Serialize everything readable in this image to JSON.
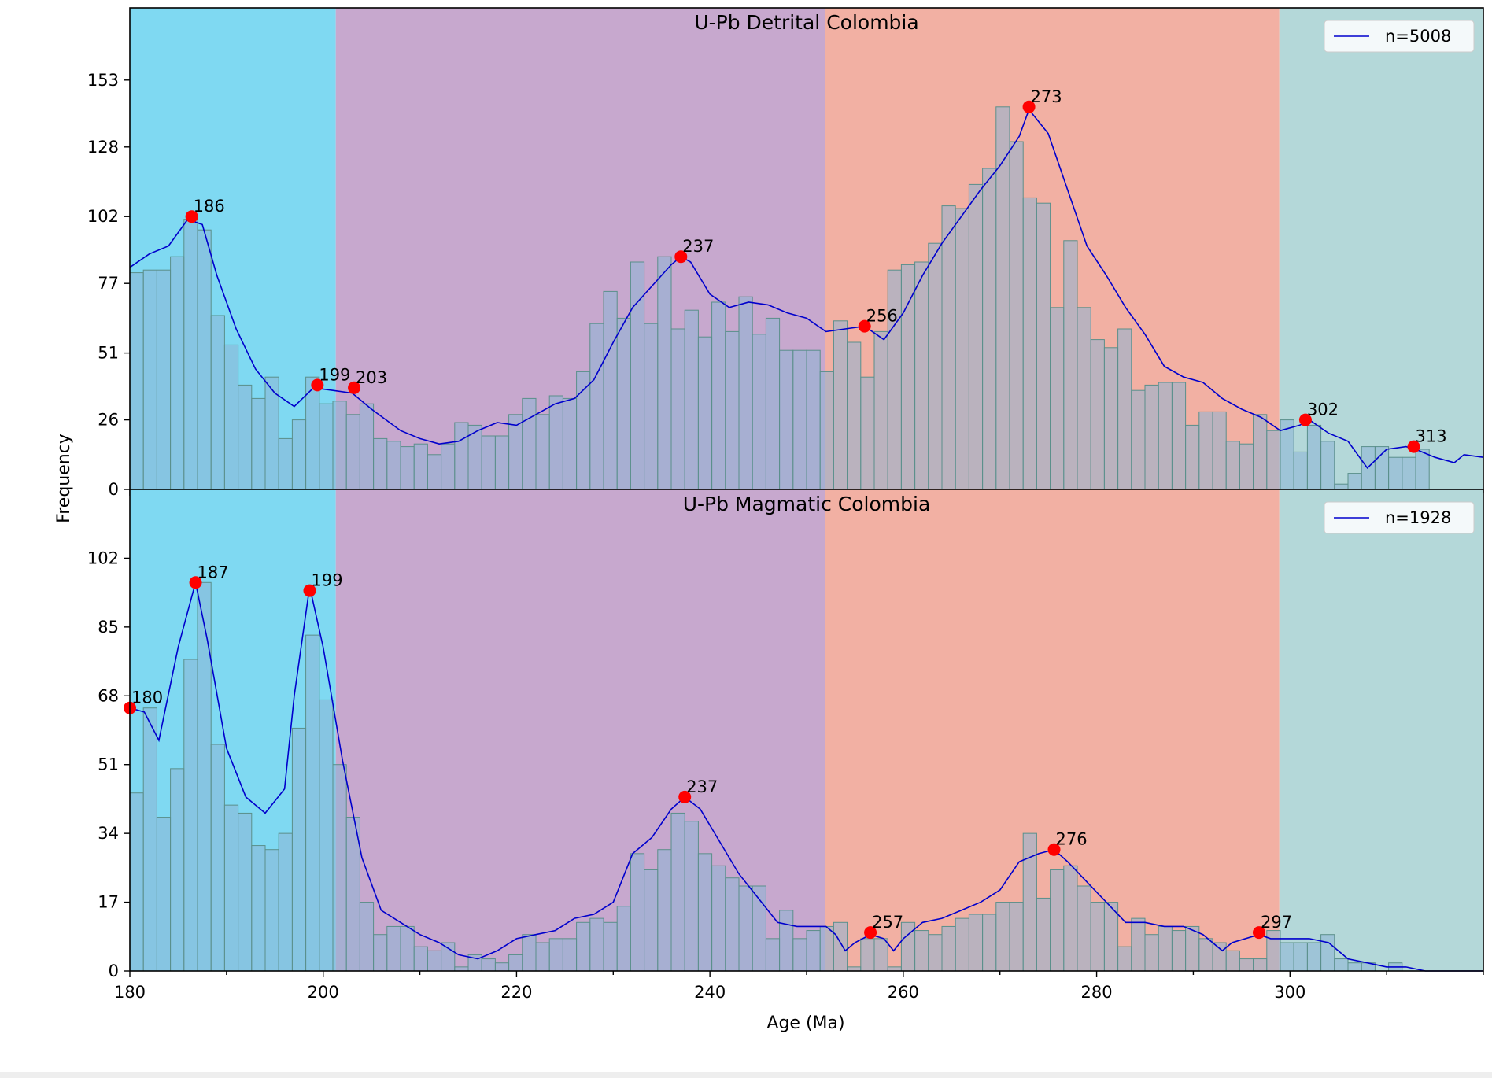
{
  "figure": {
    "ylabel": "Frequency",
    "xlabel": "Age (Ma)",
    "bottom_bar_color": "#eeeeee"
  },
  "chart_data": [
    {
      "type": "bar",
      "title": "U-Pb Detrital Colombia",
      "legend": {
        "label": "n=5008",
        "placement": "top-right"
      },
      "xlim": [
        180,
        320
      ],
      "ylim": [
        0,
        180
      ],
      "x_ticks": [
        180,
        200,
        220,
        240,
        260,
        280,
        300
      ],
      "y_ticks": [
        0,
        26,
        51,
        77,
        102,
        128,
        153
      ],
      "bin_start": 180,
      "bin_width": 1.4,
      "values": [
        81,
        82,
        82,
        87,
        101,
        97,
        65,
        54,
        39,
        34,
        42,
        19,
        26,
        42,
        32,
        33,
        28,
        32,
        19,
        18,
        16,
        17,
        13,
        17,
        25,
        24,
        20,
        20,
        28,
        34,
        28,
        35,
        34,
        44,
        62,
        74,
        64,
        85,
        62,
        87,
        60,
        67,
        57,
        70,
        59,
        72,
        58,
        64,
        52,
        52,
        52,
        44,
        63,
        55,
        42,
        59,
        82,
        84,
        85,
        92,
        106,
        105,
        114,
        120,
        143,
        130,
        109,
        107,
        68,
        93,
        68,
        56,
        53,
        60,
        37,
        39,
        40,
        40,
        24,
        29,
        29,
        18,
        17,
        28,
        22,
        26,
        14,
        24,
        18,
        2,
        6,
        16,
        16,
        12,
        12,
        15
      ],
      "kde": [
        [
          180,
          83
        ],
        [
          182,
          88
        ],
        [
          184,
          91
        ],
        [
          186,
          101
        ],
        [
          187.5,
          99
        ],
        [
          189,
          80
        ],
        [
          191,
          60
        ],
        [
          193,
          45
        ],
        [
          195,
          36
        ],
        [
          197,
          31
        ],
        [
          199,
          38
        ],
        [
          201,
          37
        ],
        [
          203,
          36
        ],
        [
          205,
          30
        ],
        [
          208,
          22
        ],
        [
          210,
          19
        ],
        [
          212,
          17
        ],
        [
          214,
          18
        ],
        [
          216,
          22
        ],
        [
          218,
          25
        ],
        [
          220,
          24
        ],
        [
          222,
          28
        ],
        [
          224,
          32
        ],
        [
          226,
          34
        ],
        [
          228,
          41
        ],
        [
          230,
          55
        ],
        [
          232,
          68
        ],
        [
          234,
          76
        ],
        [
          236,
          84
        ],
        [
          237,
          87
        ],
        [
          238,
          85
        ],
        [
          240,
          73
        ],
        [
          242,
          68
        ],
        [
          244,
          70
        ],
        [
          246,
          69
        ],
        [
          248,
          66
        ],
        [
          250,
          64
        ],
        [
          252,
          59
        ],
        [
          254,
          60
        ],
        [
          256,
          61
        ],
        [
          258,
          56
        ],
        [
          260,
          66
        ],
        [
          262,
          80
        ],
        [
          264,
          92
        ],
        [
          266,
          102
        ],
        [
          268,
          112
        ],
        [
          270,
          121
        ],
        [
          272,
          132
        ],
        [
          273,
          142
        ],
        [
          275,
          133
        ],
        [
          277,
          112
        ],
        [
          279,
          91
        ],
        [
          281,
          80
        ],
        [
          283,
          68
        ],
        [
          285,
          58
        ],
        [
          287,
          46
        ],
        [
          289,
          42
        ],
        [
          291,
          40
        ],
        [
          293,
          34
        ],
        [
          295,
          30
        ],
        [
          297,
          27
        ],
        [
          299,
          22
        ],
        [
          301,
          24
        ],
        [
          302,
          26
        ],
        [
          304,
          21
        ],
        [
          306,
          18
        ],
        [
          308,
          8
        ],
        [
          310,
          15
        ],
        [
          312,
          16
        ],
        [
          313,
          15
        ],
        [
          315,
          12
        ],
        [
          317,
          10
        ],
        [
          318,
          13
        ],
        [
          320,
          12
        ]
      ],
      "peaks": [
        {
          "x": 186.4,
          "y": 102,
          "label": "186"
        },
        {
          "x": 199.4,
          "y": 39,
          "label": "199"
        },
        {
          "x": 203.2,
          "y": 38,
          "label": "203"
        },
        {
          "x": 237,
          "y": 87,
          "label": "237"
        },
        {
          "x": 256,
          "y": 61,
          "label": "256"
        },
        {
          "x": 273,
          "y": 143,
          "label": "273"
        },
        {
          "x": 301.6,
          "y": 26,
          "label": "302"
        },
        {
          "x": 312.8,
          "y": 16,
          "label": "313"
        }
      ]
    },
    {
      "type": "bar",
      "title": "U-Pb Magmatic Colombia",
      "legend": {
        "label": "n=1928",
        "placement": "top-right"
      },
      "xlim": [
        180,
        320
      ],
      "ylim": [
        0,
        119
      ],
      "x_ticks": [
        180,
        200,
        220,
        240,
        260,
        280,
        300
      ],
      "y_ticks": [
        0,
        17,
        34,
        51,
        68,
        85,
        102
      ],
      "bin_start": 180,
      "bin_width": 1.4,
      "values": [
        44,
        65,
        38,
        50,
        77,
        96,
        56,
        41,
        39,
        31,
        30,
        34,
        60,
        83,
        67,
        51,
        38,
        17,
        9,
        11,
        11,
        6,
        5,
        7,
        1,
        4,
        3,
        2,
        4,
        9,
        7,
        8,
        8,
        12,
        13,
        12,
        16,
        29,
        25,
        30,
        39,
        37,
        29,
        26,
        23,
        21,
        21,
        8,
        15,
        8,
        10,
        11,
        12,
        1,
        8,
        8,
        1,
        12,
        10,
        9,
        11,
        13,
        14,
        14,
        17,
        17,
        34,
        18,
        25,
        26,
        21,
        17,
        17,
        6,
        13,
        9,
        11,
        10,
        11,
        8,
        7,
        5,
        3,
        3,
        10,
        7,
        7,
        7,
        9,
        3,
        2,
        2,
        0,
        2,
        0,
        0
      ],
      "kde": [
        [
          180,
          65
        ],
        [
          181.5,
          64
        ],
        [
          183,
          57
        ],
        [
          185,
          80
        ],
        [
          186.8,
          96
        ],
        [
          188,
          82
        ],
        [
          190,
          55
        ],
        [
          192,
          43
        ],
        [
          194,
          39
        ],
        [
          196,
          45
        ],
        [
          197,
          68
        ],
        [
          198.6,
          95
        ],
        [
          200,
          80
        ],
        [
          202,
          52
        ],
        [
          204,
          28
        ],
        [
          206,
          15
        ],
        [
          208,
          12
        ],
        [
          210,
          9
        ],
        [
          212,
          7
        ],
        [
          214,
          4
        ],
        [
          216,
          3
        ],
        [
          218,
          5
        ],
        [
          220,
          8
        ],
        [
          222,
          9
        ],
        [
          224,
          10
        ],
        [
          226,
          13
        ],
        [
          228,
          14
        ],
        [
          230,
          17
        ],
        [
          232,
          29
        ],
        [
          234,
          33
        ],
        [
          236,
          40
        ],
        [
          237.4,
          43
        ],
        [
          239,
          40
        ],
        [
          241,
          32
        ],
        [
          243,
          24
        ],
        [
          245,
          18
        ],
        [
          247,
          12
        ],
        [
          249,
          11
        ],
        [
          251,
          11
        ],
        [
          252,
          11
        ],
        [
          253,
          9
        ],
        [
          254,
          5
        ],
        [
          255,
          7
        ],
        [
          256.6,
          9
        ],
        [
          258,
          8
        ],
        [
          259,
          5
        ],
        [
          260,
          8
        ],
        [
          262,
          12
        ],
        [
          264,
          13
        ],
        [
          266,
          15
        ],
        [
          268,
          17
        ],
        [
          270,
          20
        ],
        [
          272,
          27
        ],
        [
          274,
          29
        ],
        [
          275.6,
          30
        ],
        [
          277,
          27
        ],
        [
          279,
          22
        ],
        [
          281,
          17
        ],
        [
          283,
          12
        ],
        [
          285,
          12
        ],
        [
          287,
          11
        ],
        [
          289,
          11
        ],
        [
          291,
          9
        ],
        [
          293,
          5
        ],
        [
          294,
          7
        ],
        [
          296.8,
          9
        ],
        [
          298,
          8
        ],
        [
          300,
          8
        ],
        [
          302,
          8
        ],
        [
          304,
          7
        ],
        [
          306,
          3
        ],
        [
          308,
          2
        ],
        [
          310,
          1
        ],
        [
          312,
          1
        ],
        [
          314,
          0
        ],
        [
          316,
          0
        ],
        [
          320,
          0
        ]
      ],
      "peaks": [
        {
          "x": 180,
          "y": 65,
          "label": "180"
        },
        {
          "x": 186.8,
          "y": 96,
          "label": "187"
        },
        {
          "x": 198.6,
          "y": 94,
          "label": "199"
        },
        {
          "x": 237.4,
          "y": 43,
          "label": "237"
        },
        {
          "x": 256.6,
          "y": 9.5,
          "label": "257"
        },
        {
          "x": 275.6,
          "y": 30,
          "label": "276"
        },
        {
          "x": 296.8,
          "y": 9.5,
          "label": "297"
        }
      ]
    }
  ],
  "background_bands": [
    {
      "from": 180,
      "to": 201.3,
      "color": "#7fd9f2"
    },
    {
      "from": 201.3,
      "to": 251.9,
      "color": "#c7a8ce"
    },
    {
      "from": 251.9,
      "to": 298.9,
      "color": "#f2b0a3"
    },
    {
      "from": 298.9,
      "to": 320,
      "color": "#b4d8d9"
    }
  ],
  "colors": {
    "kde_line": "#0000cc",
    "peak_marker": "#ff0000",
    "bar_fill": "#8cb4d6",
    "bar_fill_opacity": 0.55,
    "bar_stroke": "#5a8f8a"
  }
}
